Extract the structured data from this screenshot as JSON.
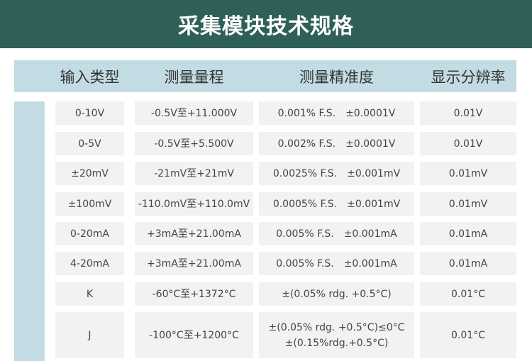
{
  "title": "采集模块技术规格",
  "columns": [
    "输入类型",
    "测量量程",
    "测量精准度",
    "显示分辨率"
  ],
  "rows": [
    {
      "type": "0-10V",
      "range": "-0.5V至+11.000V",
      "accuracy": "0.001% F.S.　±0.0001V",
      "resolution": "0.01V"
    },
    {
      "type": "0-5V",
      "range": "-0.5V至+5.500V",
      "accuracy": "0.002% F.S.　±0.0001V",
      "resolution": "0.01V"
    },
    {
      "type": "±20mV",
      "range": "-21mV至+21mV",
      "accuracy": "0.0025% F.S.　±0.001mV",
      "resolution": "0.01mV"
    },
    {
      "type": "±100mV",
      "range": "-110.0mV至+110.0mV",
      "accuracy": "0.0005% F.S.　±0.001mV",
      "resolution": "0.01mV"
    },
    {
      "type": "0-20mA",
      "range": "+3mA至+21.00mA",
      "accuracy": "0.005% F.S.　±0.001mA",
      "resolution": "0.01mA"
    },
    {
      "type": "4-20mA",
      "range": "+3mA至+21.00mA",
      "accuracy": "0.005% F.S.　±0.001mA",
      "resolution": "0.01mA"
    },
    {
      "type": "K",
      "range": "-60°C至+1372°C",
      "accuracy": "±(0.05% rdg. +0.5°C)",
      "resolution": "0.01°C"
    },
    {
      "type": "J",
      "range": "-100°C至+1200°C",
      "accuracy": "±(0.05% rdg. +0.5°C)≤0°C\n±(0.15%rdg.+0.5°C)",
      "resolution": "0.01°C"
    }
  ]
}
